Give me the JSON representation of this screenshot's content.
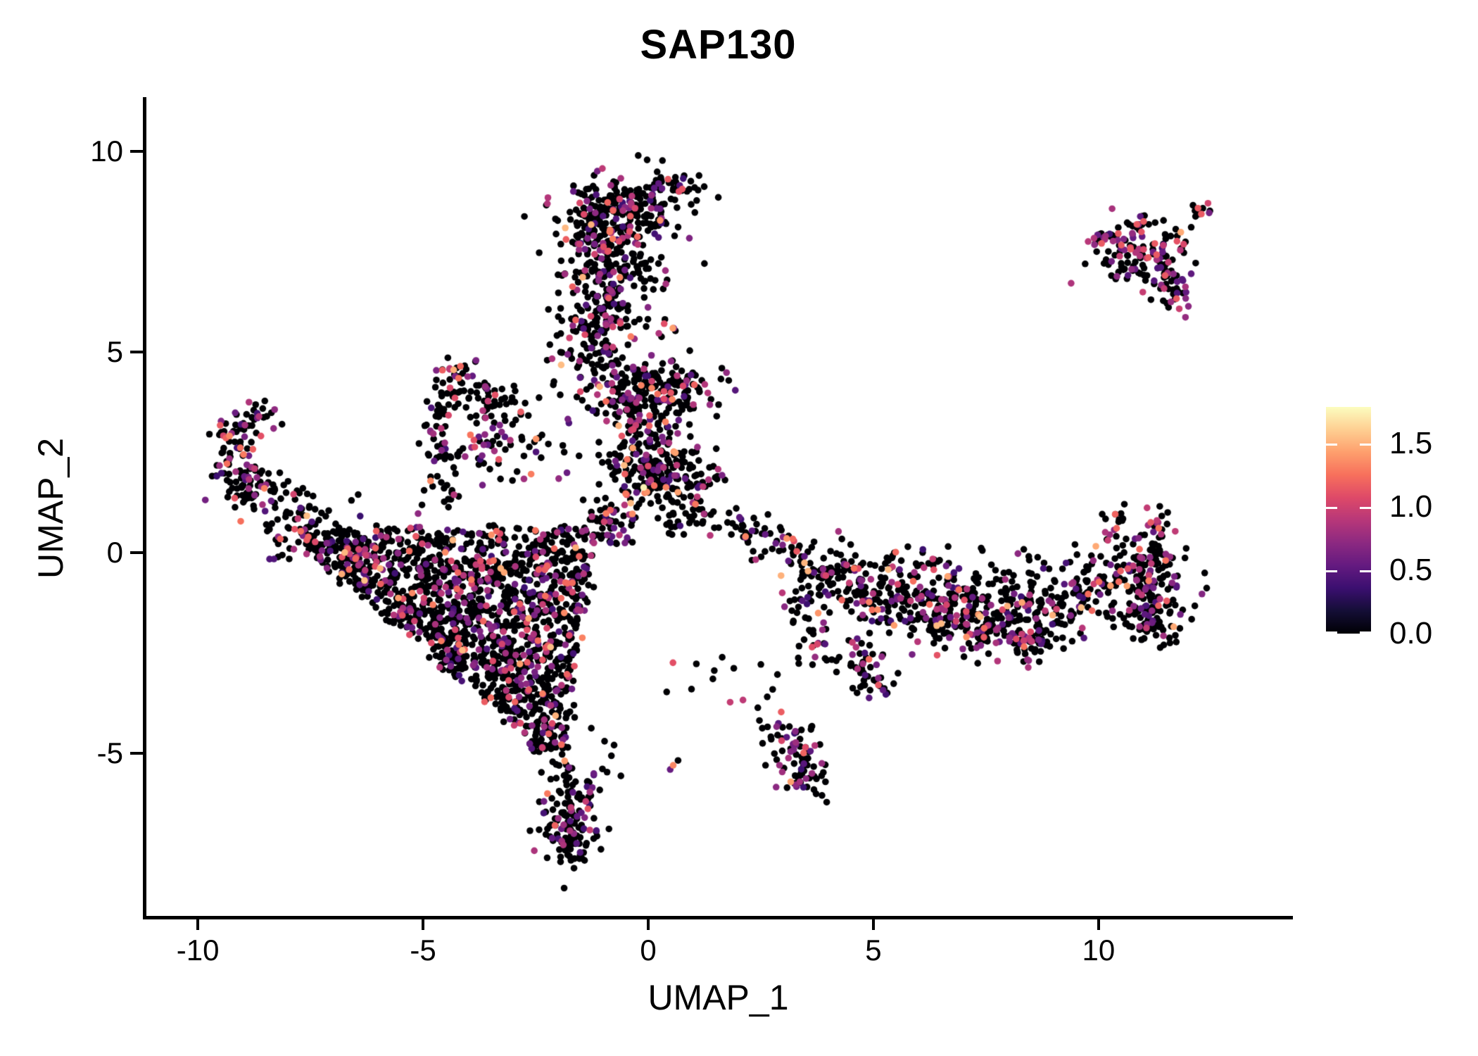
{
  "chart_data": {
    "type": "scatter",
    "title": "SAP130",
    "xlabel": "UMAP_1",
    "ylabel": "UMAP_2",
    "xlim": [
      -11.19,
      14.3
    ],
    "ylim": [
      -9.06,
      11.31
    ],
    "grid": false,
    "background": "#ffffff",
    "text_color": "#000000",
    "point_radius_px": 4.8,
    "x_ticks": [
      {
        "label": "-10",
        "value": -10
      },
      {
        "label": "-5",
        "value": -5
      },
      {
        "label": "0",
        "value": 0
      },
      {
        "label": "5",
        "value": 5
      },
      {
        "label": "10",
        "value": 10
      }
    ],
    "y_ticks": [
      {
        "label": "10",
        "value": 10
      },
      {
        "label": "5",
        "value": 5
      },
      {
        "label": "0",
        "value": 0
      },
      {
        "label": "-5",
        "value": -5
      }
    ],
    "colorbar": {
      "position": "right",
      "vmin": 0.0,
      "vmax": 1.79,
      "tick_labels": [
        {
          "label": "1.5",
          "value": 1.5
        },
        {
          "label": "1.0",
          "value": 1.0
        },
        {
          "label": "0.5",
          "value": 0.5
        },
        {
          "label": "0.0",
          "value": 0.0
        }
      ],
      "colormap": "magma",
      "anchors": [
        {
          "t": 0.0,
          "color": "#000004"
        },
        {
          "t": 0.1,
          "color": "#140e36"
        },
        {
          "t": 0.2,
          "color": "#3b0f70"
        },
        {
          "t": 0.3,
          "color": "#641a80"
        },
        {
          "t": 0.4,
          "color": "#8c2981"
        },
        {
          "t": 0.5,
          "color": "#b73779"
        },
        {
          "t": 0.6,
          "color": "#de4968"
        },
        {
          "t": 0.7,
          "color": "#f7705c"
        },
        {
          "t": 0.8,
          "color": "#fe9f6d"
        },
        {
          "t": 0.9,
          "color": "#fecf92"
        },
        {
          "t": 1.0,
          "color": "#fcfdbf"
        }
      ]
    },
    "seed": 42,
    "value_model": {
      "p_colored_default": 0.26,
      "low": [
        0.35,
        0.9
      ],
      "mid": [
        0.9,
        1.25
      ],
      "high": [
        1.25,
        1.55
      ]
    },
    "clusters": [
      {
        "k": "blob",
        "c": [
          0.45,
          9.15
        ],
        "s": [
          0.33,
          0.26
        ],
        "n": 48
      },
      {
        "k": "blob",
        "c": [
          -0.8,
          8.4
        ],
        "s": [
          0.55,
          0.42
        ],
        "n": 160
      },
      {
        "k": "blob",
        "c": [
          -0.85,
          8.3
        ],
        "s": [
          0.95,
          0.7
        ],
        "n": 60
      },
      {
        "k": "box",
        "r": [
          -0.25,
          8.1,
          0.35,
          8.95
        ],
        "n": 12
      },
      {
        "k": "strand",
        "p": [
          [
            -0.85,
            7.9
          ],
          [
            -1.15,
            6.9
          ],
          [
            -1.0,
            6.0
          ],
          [
            -1.3,
            5.05
          ]
        ],
        "w": 0.38,
        "n": 200
      },
      {
        "k": "strand",
        "p": [
          [
            -0.3,
            7.6
          ],
          [
            -0.5,
            6.5
          ],
          [
            -0.65,
            5.5
          ]
        ],
        "w": 0.3,
        "n": 65
      },
      {
        "k": "box",
        "r": [
          -0.2,
          5.3,
          0.45,
          7.4
        ],
        "n": 16
      },
      {
        "k": "box",
        "r": [
          -2.3,
          4.6,
          -1.5,
          6.2
        ],
        "n": 13
      },
      {
        "k": "blob",
        "c": [
          0.5,
          5.62
        ],
        "s": [
          0.14,
          0.1
        ],
        "n": 4,
        "pc": 0.5
      },
      {
        "k": "strand",
        "p": [
          [
            -1.2,
            5.0
          ],
          [
            -0.6,
            4.2
          ],
          [
            -0.35,
            3.3
          ],
          [
            -0.5,
            2.4
          ]
        ],
        "w": 0.42,
        "n": 150
      },
      {
        "k": "strand",
        "p": [
          [
            -0.35,
            3.3
          ],
          [
            0.1,
            2.6
          ],
          [
            0.4,
            2.15
          ]
        ],
        "w": 0.3,
        "n": 55
      },
      {
        "k": "box",
        "r": [
          -0.6,
          3.5,
          0.1,
          4.6
        ],
        "n": 38
      },
      {
        "k": "blob",
        "c": [
          0.55,
          3.95
        ],
        "s": [
          0.5,
          0.42
        ],
        "n": 115
      },
      {
        "k": "blob",
        "c": [
          0.6,
          1.9
        ],
        "s": [
          0.55,
          0.4
        ],
        "n": 125
      },
      {
        "k": "blob",
        "c": [
          -0.2,
          1.8
        ],
        "s": [
          0.45,
          0.45
        ],
        "n": 55
      },
      {
        "k": "box",
        "r": [
          0.2,
          0.35,
          1.5,
          1.35
        ],
        "n": 26
      },
      {
        "k": "box",
        "r": [
          -1.3,
          0.2,
          -0.3,
          1.1
        ],
        "n": 55
      },
      {
        "k": "box",
        "r": [
          -2.9,
          1.8,
          -1.4,
          4.3
        ],
        "n": 22
      },
      {
        "k": "strand",
        "p": [
          [
            -4.35,
            4.55
          ],
          [
            -4.55,
            3.4
          ],
          [
            -4.68,
            2.3
          ],
          [
            -4.6,
            1.25
          ]
        ],
        "w": 0.22,
        "n": 65
      },
      {
        "k": "strand",
        "p": [
          [
            -4.35,
            4.55
          ],
          [
            -3.6,
            4.0
          ],
          [
            -2.95,
            3.4
          ]
        ],
        "w": 0.24,
        "n": 48
      },
      {
        "k": "strand",
        "p": [
          [
            -4.15,
            3.35
          ],
          [
            -3.55,
            2.8
          ],
          [
            -3.1,
            2.25
          ]
        ],
        "w": 0.4,
        "n": 42
      },
      {
        "k": "blob",
        "c": [
          -3.9,
          3.0
        ],
        "s": [
          0.55,
          0.65
        ],
        "n": 26
      },
      {
        "k": "strand",
        "p": [
          [
            -8.3,
            3.3
          ],
          [
            -8.9,
            3.45
          ],
          [
            -9.3,
            3.05
          ],
          [
            -9.35,
            2.45
          ]
        ],
        "w": 0.22,
        "n": 52
      },
      {
        "k": "blob",
        "c": [
          -9.05,
          1.95
        ],
        "s": [
          0.3,
          0.33
        ],
        "n": 55,
        "pc": 0.35
      },
      {
        "k": "strand",
        "p": [
          [
            -9.2,
            1.75
          ],
          [
            -8.3,
            1.3
          ],
          [
            -7.5,
            0.8
          ],
          [
            -6.6,
            0.1
          ],
          [
            -6.2,
            -0.3
          ]
        ],
        "w": 0.32,
        "n": 130
      },
      {
        "k": "box",
        "r": [
          -8.6,
          -0.2,
          -6.8,
          0.8
        ],
        "n": 28
      },
      {
        "k": "box",
        "r": [
          -7.0,
          0.9,
          -4.4,
          1.5
        ],
        "n": 7
      },
      {
        "k": "trap",
        "y": [
          0.6,
          -0.6
        ],
        "xl": [
          -8.0,
          -6.9
        ],
        "xr": [
          -1.25,
          -1.3
        ],
        "n": 500
      },
      {
        "k": "trap",
        "y": [
          -0.6,
          -1.8
        ],
        "xl": [
          -6.9,
          -5.6
        ],
        "xr": [
          -1.3,
          -1.5
        ],
        "n": 450
      },
      {
        "k": "trap",
        "y": [
          -1.8,
          -3.0
        ],
        "xl": [
          -5.6,
          -4.3
        ],
        "xr": [
          -1.5,
          -1.65
        ],
        "n": 320
      },
      {
        "k": "trap",
        "y": [
          -3.0,
          -4.0
        ],
        "xl": [
          -4.3,
          -3.3
        ],
        "xr": [
          -1.65,
          -1.75
        ],
        "n": 170
      },
      {
        "k": "trap",
        "y": [
          -4.0,
          -4.9
        ],
        "xl": [
          -3.3,
          -2.5
        ],
        "xr": [
          -1.75,
          -1.85
        ],
        "n": 85
      },
      {
        "k": "strand",
        "p": [
          [
            -2.15,
            -4.9
          ],
          [
            -1.75,
            -5.6
          ],
          [
            -1.6,
            -6.3
          ],
          [
            -1.78,
            -7.0
          ],
          [
            -1.72,
            -7.5
          ]
        ],
        "w": 0.3,
        "n": 100
      },
      {
        "k": "blob",
        "c": [
          -1.78,
          -6.9
        ],
        "s": [
          0.33,
          0.5
        ],
        "n": 65
      },
      {
        "k": "box",
        "r": [
          -1.1,
          -5.6,
          -0.6,
          -4.4
        ],
        "n": 6
      },
      {
        "k": "blob",
        "c": [
          0.55,
          -5.3
        ],
        "s": [
          0.12,
          0.09
        ],
        "n": 3,
        "pc": 0.5
      },
      {
        "k": "box",
        "r": [
          0.0,
          -3.9,
          2.9,
          -2.6
        ],
        "n": 14,
        "pc": 0.15
      },
      {
        "k": "strand",
        "p": [
          [
            1.7,
            0.8
          ],
          [
            2.6,
            0.3
          ],
          [
            3.6,
            -0.3
          ],
          [
            4.3,
            -0.7
          ]
        ],
        "w": 0.28,
        "n": 105
      },
      {
        "k": "strand",
        "p": [
          [
            4.3,
            -0.7
          ],
          [
            5.2,
            -1.0
          ],
          [
            6.2,
            -1.25
          ],
          [
            7.2,
            -1.45
          ],
          [
            8.2,
            -1.5
          ],
          [
            9.0,
            -1.3
          ]
        ],
        "w": 0.48,
        "n": 400
      },
      {
        "k": "blob",
        "c": [
          6.5,
          -1.85
        ],
        "s": [
          0.5,
          0.3
        ],
        "n": 55
      },
      {
        "k": "blob",
        "c": [
          8.0,
          -2.0
        ],
        "s": [
          0.5,
          0.3
        ],
        "n": 65
      },
      {
        "k": "blob",
        "c": [
          8.6,
          -2.15
        ],
        "s": [
          0.3,
          0.25
        ],
        "n": 28
      },
      {
        "k": "box",
        "r": [
          4.5,
          -0.55,
          9.5,
          0.25
        ],
        "n": 32
      },
      {
        "k": "strand",
        "p": [
          [
            9.0,
            -1.3
          ],
          [
            9.8,
            -0.9
          ],
          [
            10.4,
            -0.8
          ]
        ],
        "w": 0.4,
        "n": 85
      },
      {
        "k": "blob",
        "c": [
          11.0,
          -0.9
        ],
        "s": [
          0.5,
          0.55
        ],
        "n": 145,
        "pc": 0.33
      },
      {
        "k": "blob",
        "c": [
          11.2,
          -1.95
        ],
        "s": [
          0.25,
          0.3
        ],
        "n": 32
      },
      {
        "k": "strand",
        "p": [
          [
            10.5,
            -0.4
          ],
          [
            11.2,
            -0.1
          ],
          [
            11.45,
            0.3
          ]
        ],
        "w": 0.25,
        "n": 40
      },
      {
        "k": "blob",
        "c": [
          11.35,
          0.9
        ],
        "s": [
          0.14,
          0.18
        ],
        "n": 7,
        "pc": 0.4
      },
      {
        "k": "strand",
        "p": [
          [
            10.35,
            1.15
          ],
          [
            10.4,
            0.0
          ]
        ],
        "w": 0.16,
        "n": 20
      },
      {
        "k": "strand",
        "p": [
          [
            11.3,
            1.0
          ],
          [
            11.35,
            0.35
          ]
        ],
        "w": 0.12,
        "n": 9,
        "pc": 0.5
      },
      {
        "k": "strand",
        "p": [
          [
            3.3,
            -0.9
          ],
          [
            3.75,
            -2.6
          ]
        ],
        "w": 0.22,
        "n": 42
      },
      {
        "k": "strand",
        "p": [
          [
            4.0,
            -2.7
          ],
          [
            4.4,
            -2.78
          ]
        ],
        "w": 0.12,
        "n": 8
      },
      {
        "k": "blob",
        "c": [
          4.95,
          -3.1
        ],
        "s": [
          0.28,
          0.33
        ],
        "n": 32
      },
      {
        "k": "strand",
        "p": [
          [
            4.72,
            -2.2
          ],
          [
            4.92,
            -2.85
          ]
        ],
        "w": 0.14,
        "n": 13
      },
      {
        "k": "strand",
        "p": [
          [
            3.05,
            -4.35
          ],
          [
            3.6,
            -5.85
          ]
        ],
        "w": 0.28,
        "n": 88,
        "pc": 0.3
      },
      {
        "k": "blob",
        "c": [
          10.95,
          7.3
        ],
        "s": [
          0.48,
          0.42
        ],
        "n": 105,
        "pc": 0.4,
        "vm": 1.15
      },
      {
        "k": "strand",
        "p": [
          [
            9.85,
            7.95
          ],
          [
            10.5,
            7.72
          ]
        ],
        "w": 0.16,
        "n": 22,
        "pc": 0.4,
        "vm": 1.15
      },
      {
        "k": "strand",
        "p": [
          [
            10.6,
            8.1
          ],
          [
            11.15,
            8.2
          ]
        ],
        "w": 0.13,
        "n": 13,
        "pc": 0.4,
        "vm": 1.15
      },
      {
        "k": "strand",
        "p": [
          [
            11.3,
            7.0
          ],
          [
            11.85,
            6.3
          ]
        ],
        "w": 0.22,
        "n": 40,
        "pc": 0.4,
        "vm": 1.15
      },
      {
        "k": "blob",
        "c": [
          12.32,
          8.45
        ],
        "s": [
          0.16,
          0.13
        ],
        "n": 11,
        "pc": 0.4,
        "vm": 1.15
      },
      {
        "k": "box",
        "r": [
          11.4,
          7.7,
          12.1,
          8.15
        ],
        "n": 6,
        "pc": 0.3
      }
    ],
    "highlight_points": [
      [
        -4.32,
        4.55,
        1.5
      ],
      [
        -0.1,
        1.62,
        1.75
      ],
      [
        2.95,
        -0.58,
        1.5
      ],
      [
        6.65,
        -0.6,
        1.45
      ],
      [
        -6.3,
        -0.7,
        1.55
      ],
      [
        -3.2,
        -0.5,
        1.45
      ],
      [
        -6.5,
        -0.16,
        1.2
      ],
      [
        10.37,
        0.95,
        1.2
      ],
      [
        10.4,
        0.6,
        1.2
      ],
      [
        0.44,
        9.3,
        1.15
      ],
      [
        -0.9,
        8.72,
        1.2
      ],
      [
        -0.78,
        8.52,
        1.2
      ],
      [
        -8.6,
        2.9,
        1.1
      ],
      [
        -4.4,
        4.1,
        1.05
      ],
      [
        -2.83,
        3.5,
        1.15
      ],
      [
        -3.87,
        2.8,
        1.1
      ],
      [
        3.45,
        -5.0,
        1.2
      ],
      [
        8.3,
        -1.25,
        1.45
      ],
      [
        6.9,
        -0.93,
        1.25
      ],
      [
        -2.6,
        1.95,
        1.3
      ],
      [
        0.55,
        -2.75,
        1.1
      ],
      [
        11.0,
        7.55,
        1.05
      ]
    ]
  }
}
